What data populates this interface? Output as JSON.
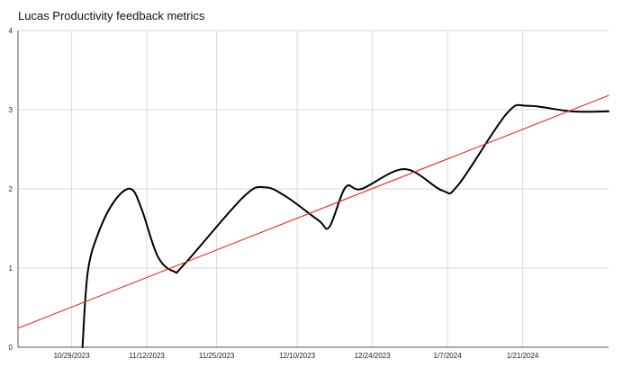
{
  "chart_data": {
    "type": "line",
    "title": "Lucas Productivity feedback metrics",
    "xlabel": "",
    "ylabel": "",
    "ylim": [
      0,
      4
    ],
    "xlim": [
      "2023-10-19",
      "2024-02-06"
    ],
    "grid": true,
    "legend": "none",
    "x_ticks": [
      "10/29/2023",
      "11/12/2023",
      "11/25/2023",
      "12/10/2023",
      "12/24/2023",
      "1/7/2024",
      "1/21/2024"
    ],
    "y_ticks": [
      "0",
      "1",
      "2",
      "3",
      "4"
    ],
    "series": [
      {
        "color": "#000000",
        "points": [
          {
            "x": "2023-10-31",
            "y": 0.0
          },
          {
            "x": "2023-11-01",
            "y": 0.95
          },
          {
            "x": "2023-11-03",
            "y": 1.45
          },
          {
            "x": "2023-11-06",
            "y": 1.85
          },
          {
            "x": "2023-11-09",
            "y": 2.0
          },
          {
            "x": "2023-11-11",
            "y": 1.75
          },
          {
            "x": "2023-11-14",
            "y": 1.15
          },
          {
            "x": "2023-11-17",
            "y": 0.96
          },
          {
            "x": "2023-11-19",
            "y": 1.05
          },
          {
            "x": "2023-11-30",
            "y": 1.9
          },
          {
            "x": "2023-12-04",
            "y": 2.02
          },
          {
            "x": "2023-12-08",
            "y": 1.9
          },
          {
            "x": "2023-12-14",
            "y": 1.6
          },
          {
            "x": "2023-12-16",
            "y": 1.52
          },
          {
            "x": "2023-12-19",
            "y": 2.02
          },
          {
            "x": "2023-12-22",
            "y": 2.0
          },
          {
            "x": "2023-12-30",
            "y": 2.25
          },
          {
            "x": "2024-01-06",
            "y": 1.98
          },
          {
            "x": "2024-01-09",
            "y": 2.05
          },
          {
            "x": "2024-01-18",
            "y": 2.95
          },
          {
            "x": "2024-01-22",
            "y": 3.05
          },
          {
            "x": "2024-01-30",
            "y": 2.98
          },
          {
            "x": "2024-02-06",
            "y": 2.98
          }
        ]
      },
      {
        "color": "#e8291c",
        "points": [
          {
            "x": "2023-10-19",
            "y": 0.24
          },
          {
            "x": "2024-02-06",
            "y": 3.18
          }
        ]
      }
    ]
  }
}
